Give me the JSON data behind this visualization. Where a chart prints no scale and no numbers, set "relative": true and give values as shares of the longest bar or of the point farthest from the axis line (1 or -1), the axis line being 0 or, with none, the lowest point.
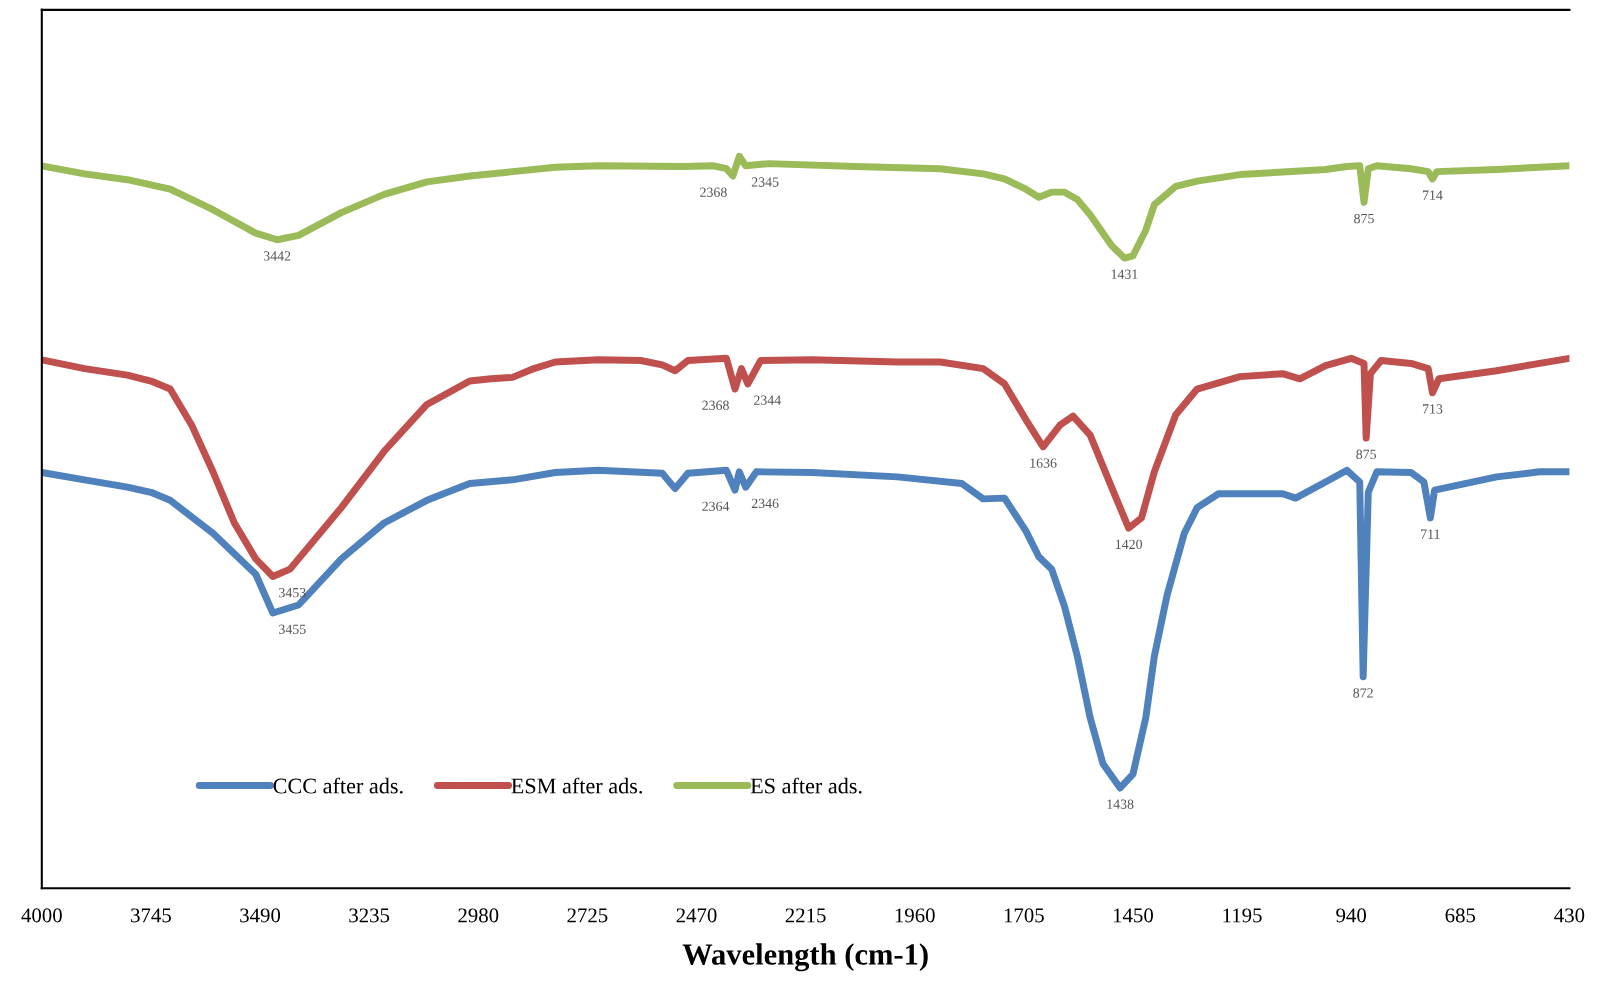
{
  "chart_data": {
    "type": "line",
    "relative": true,
    "xlabel": "Wavelength (cm-1)",
    "tick_labels": "x",
    "legend": "bottom left",
    "grid": false,
    "marker": "none",
    "line_style": "solid",
    "xlim": [
      4000,
      430
    ],
    "xticks": [
      4000,
      3745,
      3490,
      3235,
      2980,
      2725,
      2470,
      2215,
      1960,
      1705,
      1450,
      1195,
      940,
      685,
      430
    ],
    "series": [
      {
        "name": "CCC after ads.",
        "color": "#4f81bd",
        "x": [
          4000,
          3900,
          3800,
          3745,
          3700,
          3600,
          3500,
          3460,
          3400,
          3300,
          3200,
          3100,
          3000,
          2900,
          2800,
          2700,
          2550,
          2520,
          2490,
          2400,
          2380,
          2370,
          2355,
          2330,
          2200,
          2000,
          1850,
          1800,
          1750,
          1700,
          1670,
          1640,
          1610,
          1580,
          1550,
          1520,
          1480,
          1450,
          1420,
          1400,
          1370,
          1330,
          1300,
          1250,
          1100,
          1070,
          1000,
          950,
          920,
          912,
          900,
          880,
          800,
          770,
          755,
          745,
          600,
          500,
          430
        ],
        "values": [
          0.568,
          0.558,
          0.548,
          0.541,
          0.53,
          0.485,
          0.429,
          0.376,
          0.387,
          0.45,
          0.499,
          0.53,
          0.553,
          0.558,
          0.568,
          0.571,
          0.567,
          0.546,
          0.567,
          0.571,
          0.544,
          0.569,
          0.548,
          0.569,
          0.568,
          0.562,
          0.553,
          0.532,
          0.533,
          0.488,
          0.453,
          0.436,
          0.385,
          0.317,
          0.233,
          0.17,
          0.137,
          0.156,
          0.233,
          0.317,
          0.401,
          0.485,
          0.52,
          0.539,
          0.539,
          0.533,
          0.555,
          0.571,
          0.555,
          0.289,
          0.541,
          0.569,
          0.568,
          0.555,
          0.506,
          0.544,
          0.562,
          0.569,
          0.569
        ]
      },
      {
        "name": "ESM after ads.",
        "color": "#c0504d",
        "x": [
          4000,
          3900,
          3800,
          3745,
          3700,
          3650,
          3600,
          3550,
          3500,
          3460,
          3420,
          3380,
          3300,
          3200,
          3100,
          3000,
          2950,
          2900,
          2850,
          2800,
          2700,
          2600,
          2550,
          2520,
          2490,
          2400,
          2380,
          2365,
          2350,
          2320,
          2200,
          2000,
          1900,
          1800,
          1750,
          1700,
          1660,
          1620,
          1590,
          1550,
          1500,
          1460,
          1430,
          1400,
          1350,
          1300,
          1200,
          1100,
          1060,
          1000,
          940,
          910,
          905,
          895,
          870,
          800,
          760,
          750,
          735,
          600,
          430
        ],
        "values": [
          0.722,
          0.71,
          0.701,
          0.693,
          0.682,
          0.633,
          0.569,
          0.499,
          0.45,
          0.426,
          0.436,
          0.464,
          0.52,
          0.597,
          0.661,
          0.693,
          0.696,
          0.698,
          0.71,
          0.719,
          0.722,
          0.721,
          0.715,
          0.707,
          0.721,
          0.724,
          0.682,
          0.71,
          0.689,
          0.721,
          0.722,
          0.719,
          0.719,
          0.71,
          0.689,
          0.64,
          0.603,
          0.633,
          0.645,
          0.619,
          0.548,
          0.492,
          0.506,
          0.569,
          0.647,
          0.682,
          0.699,
          0.703,
          0.696,
          0.714,
          0.724,
          0.717,
          0.615,
          0.703,
          0.721,
          0.717,
          0.71,
          0.677,
          0.696,
          0.707,
          0.724
        ]
      },
      {
        "name": "ES after ads.",
        "color": "#9bbb59",
        "x": [
          4000,
          3900,
          3800,
          3745,
          3700,
          3600,
          3500,
          3450,
          3400,
          3300,
          3200,
          3100,
          3000,
          2900,
          2800,
          2700,
          2500,
          2430,
          2400,
          2385,
          2370,
          2355,
          2300,
          2100,
          1900,
          1800,
          1750,
          1700,
          1670,
          1640,
          1610,
          1580,
          1550,
          1500,
          1470,
          1450,
          1420,
          1400,
          1350,
          1300,
          1200,
          1000,
          950,
          920,
          910,
          900,
          880,
          800,
          760,
          750,
          740,
          600,
          430
        ],
        "values": [
          0.987,
          0.976,
          0.968,
          0.961,
          0.955,
          0.927,
          0.895,
          0.886,
          0.892,
          0.923,
          0.948,
          0.965,
          0.973,
          0.979,
          0.985,
          0.987,
          0.986,
          0.987,
          0.983,
          0.973,
          1.0,
          0.987,
          0.99,
          0.986,
          0.983,
          0.976,
          0.969,
          0.955,
          0.944,
          0.951,
          0.951,
          0.941,
          0.92,
          0.878,
          0.861,
          0.864,
          0.899,
          0.934,
          0.959,
          0.966,
          0.975,
          0.982,
          0.986,
          0.987,
          0.937,
          0.983,
          0.987,
          0.983,
          0.979,
          0.969,
          0.979,
          0.982,
          0.987
        ]
      }
    ],
    "annotations": [
      {
        "text": "3442",
        "x": 3450,
        "y": 0.886
      },
      {
        "text": "2368",
        "x": 2385,
        "y": 0.973
      },
      {
        "text": "2345",
        "x": 2355,
        "y": 0.987
      },
      {
        "text": "1431",
        "x": 1470,
        "y": 0.861
      },
      {
        "text": "875",
        "x": 910,
        "y": 0.937
      },
      {
        "text": "714",
        "x": 750,
        "y": 0.969
      },
      {
        "text": "3453",
        "x": 3460,
        "y": 0.426
      },
      {
        "text": "2368",
        "x": 2380,
        "y": 0.682
      },
      {
        "text": "2344",
        "x": 2350,
        "y": 0.689
      },
      {
        "text": "1636",
        "x": 1660,
        "y": 0.603
      },
      {
        "text": "1420",
        "x": 1460,
        "y": 0.492
      },
      {
        "text": "875",
        "x": 905,
        "y": 0.615
      },
      {
        "text": "713",
        "x": 750,
        "y": 0.677
      },
      {
        "text": "3455",
        "x": 3460,
        "y": 0.376
      },
      {
        "text": "2364",
        "x": 2380,
        "y": 0.544
      },
      {
        "text": "2346",
        "x": 2355,
        "y": 0.548
      },
      {
        "text": "1438",
        "x": 1480,
        "y": 0.137
      },
      {
        "text": "872",
        "x": 912,
        "y": 0.289
      },
      {
        "text": "711",
        "x": 755,
        "y": 0.506
      }
    ]
  }
}
